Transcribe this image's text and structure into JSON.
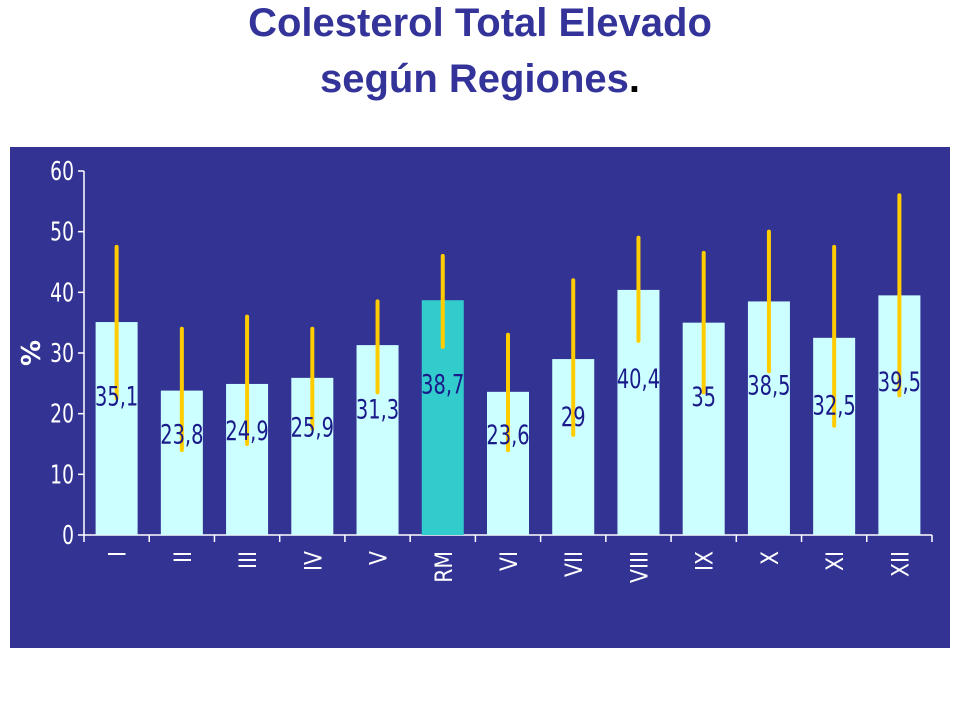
{
  "title_line1": "Colesterol Total Elevado",
  "title_line2": "según Regiones",
  "title_period": ".",
  "colors": {
    "background": "#333394",
    "bar": "#ccffff",
    "highlight_bar": "#33cccc",
    "error_bar": "#ffcc00",
    "label": "#1a1a8a",
    "title": "#33339a"
  },
  "chart_data": {
    "type": "bar",
    "title": "",
    "xlabel": "",
    "ylabel": "%",
    "ylim": [
      0,
      60
    ],
    "yticks": [
      0,
      10,
      20,
      30,
      40,
      50,
      60
    ],
    "categories": [
      "I",
      "II",
      "III",
      "IV",
      "V",
      "RM",
      "VI",
      "VII",
      "VIII",
      "IX",
      "X",
      "XI",
      "XII"
    ],
    "values": [
      35.1,
      23.8,
      24.9,
      25.9,
      31.3,
      38.7,
      23.6,
      29,
      40.4,
      35,
      38.5,
      32.5,
      39.5
    ],
    "value_labels": [
      "35,1",
      "23,8",
      "24,9",
      "25,9",
      "31,3",
      "38,7",
      "23,6",
      "29",
      "40,4",
      "35",
      "38,5",
      "32,5",
      "39,5"
    ],
    "error_low": [
      22.5,
      14,
      15,
      17.5,
      23.5,
      31,
      14,
      16.5,
      32,
      23.5,
      27,
      18,
      23
    ],
    "error_high": [
      47.5,
      34,
      36,
      34,
      38.5,
      46,
      33,
      42,
      49,
      46.5,
      50,
      47.5,
      56
    ],
    "highlight": "RM",
    "grid": false,
    "legend": "none"
  }
}
